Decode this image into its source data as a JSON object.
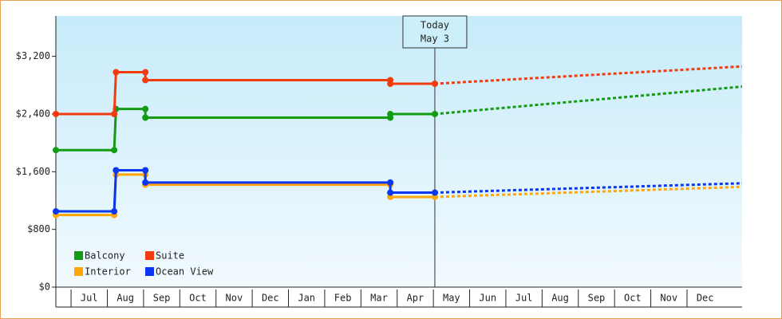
{
  "chart_data": {
    "type": "step-line",
    "x": [
      -0.42,
      1.19,
      1.24,
      2.05,
      2.05,
      8.81,
      8.81,
      10.04
    ],
    "forecast_x": [
      10.04,
      18.52
    ],
    "xlim": [
      -0.42,
      18.52
    ],
    "xticks": [
      {
        "value": 0.5,
        "label": "Jul"
      },
      {
        "value": 1.5,
        "label": "Aug"
      },
      {
        "value": 2.5,
        "label": "Sep"
      },
      {
        "value": 3.5,
        "label": "Oct"
      },
      {
        "value": 4.5,
        "label": "Nov"
      },
      {
        "value": 5.5,
        "label": "Dec"
      },
      {
        "value": 6.5,
        "label": "Jan"
      },
      {
        "value": 7.5,
        "label": "Feb"
      },
      {
        "value": 8.5,
        "label": "Mar"
      },
      {
        "value": 9.5,
        "label": "Apr"
      },
      {
        "value": 10.5,
        "label": "May"
      },
      {
        "value": 11.5,
        "label": "Jun"
      },
      {
        "value": 12.5,
        "label": "Jul"
      },
      {
        "value": 13.5,
        "label": "Aug"
      },
      {
        "value": 14.5,
        "label": "Sep"
      },
      {
        "value": 15.5,
        "label": "Oct"
      },
      {
        "value": 16.5,
        "label": "Nov"
      },
      {
        "value": 17.5,
        "label": "Dec"
      }
    ],
    "ylim": [
      0,
      3760
    ],
    "yticks": [
      {
        "value": 0,
        "label": "$0"
      },
      {
        "value": 800,
        "label": "$800"
      },
      {
        "value": 1600,
        "label": "$1,600"
      },
      {
        "value": 2400,
        "label": "$2,400"
      },
      {
        "value": 3200,
        "label": "$3,200"
      }
    ],
    "today": {
      "x": 10.04,
      "label": [
        "Today",
        "May 3"
      ]
    },
    "legend": "lower left",
    "series": [
      {
        "name": "Balcony",
        "color": "#139b13",
        "values": [
          1900,
          1900,
          2470,
          2470,
          2350,
          2350,
          2400,
          2400
        ],
        "forecast": [
          2400,
          2780
        ]
      },
      {
        "name": "Suite",
        "color": "#f23c10",
        "values": [
          2400,
          2400,
          2980,
          2980,
          2870,
          2870,
          2820,
          2820
        ],
        "forecast": [
          2820,
          3060
        ]
      },
      {
        "name": "Interior",
        "color": "#ffa60a",
        "values": [
          1000,
          1000,
          1560,
          1560,
          1420,
          1420,
          1250,
          1250
        ],
        "forecast": [
          1250,
          1390
        ]
      },
      {
        "name": "Ocean View",
        "color": "#0a36f0",
        "values": [
          1050,
          1050,
          1620,
          1620,
          1450,
          1450,
          1310,
          1310
        ],
        "forecast": [
          1310,
          1440
        ]
      }
    ]
  }
}
